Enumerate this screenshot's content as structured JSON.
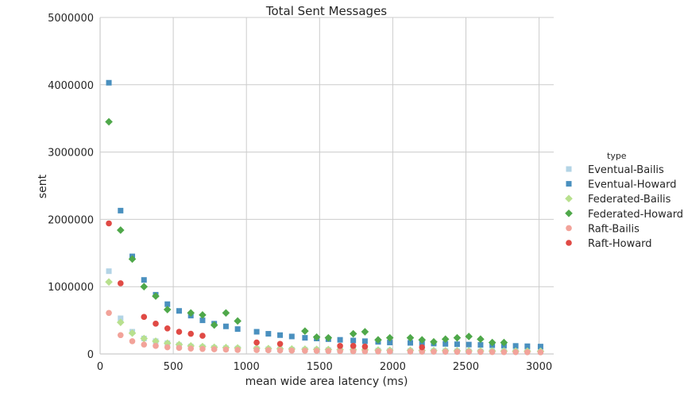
{
  "chart_data": {
    "type": "scatter",
    "title": "Total Sent Messages",
    "xlabel": "mean wide area latency (ms)",
    "ylabel": "sent",
    "xlim": [
      0,
      3100
    ],
    "ylim": [
      0,
      5000000
    ],
    "xticks": [
      0,
      500,
      1000,
      1500,
      2000,
      2500,
      3000
    ],
    "xtick_labels": [
      "0",
      "500",
      "1000",
      "1500",
      "2000",
      "2500",
      "3000"
    ],
    "yticks": [
      0,
      1000000,
      2000000,
      3000000,
      4000000,
      5000000
    ],
    "ytick_labels": [
      "0",
      "1000000",
      "2000000",
      "3000000",
      "4000000",
      "5000000"
    ],
    "grid": true,
    "legend": {
      "title": "type",
      "placement": "right"
    },
    "series": [
      {
        "name": "Eventual-Bailis",
        "marker": "square",
        "color": "#b3d4e6",
        "x": [
          60,
          140,
          220,
          300,
          380,
          460,
          540,
          620,
          700,
          780,
          860,
          940,
          1070,
          1150,
          1230,
          1310,
          1400,
          1480,
          1560,
          1640,
          1730,
          1810,
          1900,
          1980,
          2120,
          2200,
          2280,
          2360,
          2440,
          2520,
          2600,
          2680,
          2760,
          2840,
          2920,
          3010
        ],
        "y": [
          1230000,
          530000,
          330000,
          230000,
          190000,
          160000,
          130000,
          110000,
          100000,
          90000,
          85000,
          80000,
          75000,
          70000,
          68000,
          65000,
          62000,
          60000,
          58000,
          56000,
          54000,
          52000,
          50000,
          48000,
          46000,
          44000,
          43000,
          42000,
          41000,
          40000,
          39000,
          38000,
          37000,
          36000,
          35000,
          34000
        ]
      },
      {
        "name": "Eventual-Howard",
        "marker": "square",
        "color": "#4a90bf",
        "x": [
          60,
          140,
          220,
          300,
          380,
          460,
          540,
          620,
          700,
          780,
          860,
          940,
          1070,
          1150,
          1230,
          1310,
          1400,
          1480,
          1560,
          1640,
          1730,
          1810,
          1900,
          1980,
          2120,
          2200,
          2280,
          2360,
          2440,
          2520,
          2600,
          2680,
          2760,
          2840,
          2920,
          3010
        ],
        "y": [
          4030000,
          2130000,
          1450000,
          1100000,
          880000,
          740000,
          640000,
          570000,
          500000,
          450000,
          410000,
          370000,
          330000,
          300000,
          280000,
          260000,
          240000,
          230000,
          220000,
          210000,
          200000,
          190000,
          180000,
          170000,
          165000,
          160000,
          155000,
          150000,
          145000,
          140000,
          135000,
          130000,
          125000,
          120000,
          115000,
          110000
        ]
      },
      {
        "name": "Federated-Bailis",
        "marker": "diamond",
        "color": "#b8e08e",
        "x": [
          60,
          140,
          220,
          300,
          380,
          460,
          540,
          620,
          700,
          780,
          860,
          940,
          1070,
          1150,
          1230,
          1310,
          1400,
          1480,
          1560,
          1640,
          1730,
          1810,
          1900,
          1980,
          2120,
          2200,
          2280,
          2360,
          2440,
          2520,
          2600,
          2680,
          2760,
          2840,
          2920,
          3010
        ],
        "y": [
          1070000,
          470000,
          310000,
          230000,
          190000,
          160000,
          140000,
          120000,
          110000,
          100000,
          95000,
          90000,
          85000,
          80000,
          77000,
          74000,
          71000,
          68000,
          66000,
          64000,
          62000,
          60000,
          58000,
          56000,
          54000,
          52000,
          50000,
          48000,
          47000,
          46000,
          45000,
          44000,
          43000,
          42000,
          41000,
          40000
        ]
      },
      {
        "name": "Federated-Howard",
        "marker": "diamond",
        "color": "#4fa84a",
        "x": [
          60,
          140,
          220,
          300,
          380,
          460,
          620,
          700,
          780,
          860,
          940,
          1400,
          1480,
          1560,
          1730,
          1810,
          1900,
          1980,
          2120,
          2200,
          2280,
          2360,
          2440,
          2520,
          2600,
          2680,
          2760
        ],
        "y": [
          3450000,
          1840000,
          1410000,
          1000000,
          860000,
          660000,
          610000,
          580000,
          430000,
          610000,
          490000,
          340000,
          250000,
          240000,
          300000,
          330000,
          210000,
          240000,
          240000,
          210000,
          180000,
          220000,
          240000,
          260000,
          220000,
          170000,
          170000
        ]
      },
      {
        "name": "Raft-Bailis",
        "marker": "circle",
        "color": "#f2a39a",
        "x": [
          60,
          140,
          220,
          300,
          380,
          460,
          540,
          620,
          700,
          780,
          860,
          940,
          1070,
          1150,
          1230,
          1310,
          1400,
          1480,
          1560,
          1640,
          1730,
          1810,
          1900,
          1980,
          2120,
          2200,
          2280,
          2360,
          2440,
          2520,
          2600,
          2680,
          2760,
          2840,
          2920,
          3010
        ],
        "y": [
          610000,
          280000,
          190000,
          140000,
          120000,
          100000,
          90000,
          80000,
          75000,
          70000,
          65000,
          60000,
          58000,
          55000,
          52000,
          50000,
          48000,
          46000,
          44000,
          42000,
          40000,
          39000,
          38000,
          37000,
          36000,
          35000,
          34000,
          33000,
          32000,
          31000,
          30000,
          29000,
          28000,
          27000,
          26000,
          25000
        ]
      },
      {
        "name": "Raft-Howard",
        "marker": "circle",
        "color": "#e04a45",
        "x": [
          60,
          140,
          300,
          380,
          460,
          540,
          620,
          700,
          1070,
          1230,
          1640,
          1730,
          1810,
          2200
        ],
        "y": [
          1940000,
          1050000,
          550000,
          450000,
          380000,
          330000,
          300000,
          270000,
          170000,
          150000,
          120000,
          120000,
          110000,
          100000
        ]
      }
    ]
  }
}
